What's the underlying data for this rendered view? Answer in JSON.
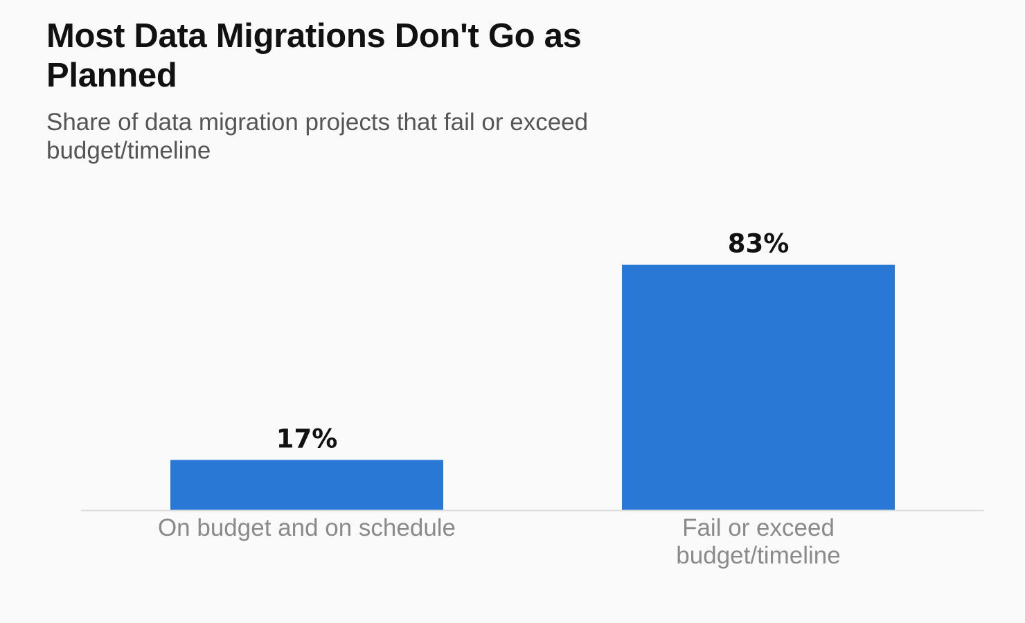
{
  "header": {
    "title": "Most Data Migrations Don't Go as Planned",
    "subtitle": "Share of data migration projects that fail or exceed budget/timeline"
  },
  "colors": {
    "background": "#fafafa",
    "bar": "#2a78d6",
    "axis": "#dddddd",
    "value_label": "#111111",
    "category_label": "#8a8a8a"
  },
  "chart_data": {
    "type": "bar",
    "title": "Most Data Migrations Don't Go as Planned",
    "subtitle": "Share of data migration projects that fail or exceed budget/timeline",
    "categories": [
      "On budget and on schedule",
      "Fail or exceed budget/timeline"
    ],
    "category_label_lines": [
      [
        "On budget and on schedule"
      ],
      [
        "Fail or exceed",
        "budget/timeline"
      ]
    ],
    "values": [
      17,
      83
    ],
    "value_labels": [
      "17%",
      "83%"
    ],
    "unit": "%",
    "xlabel": "",
    "ylabel": "",
    "ylim": [
      0,
      100
    ],
    "grid": false,
    "legend": "none"
  }
}
